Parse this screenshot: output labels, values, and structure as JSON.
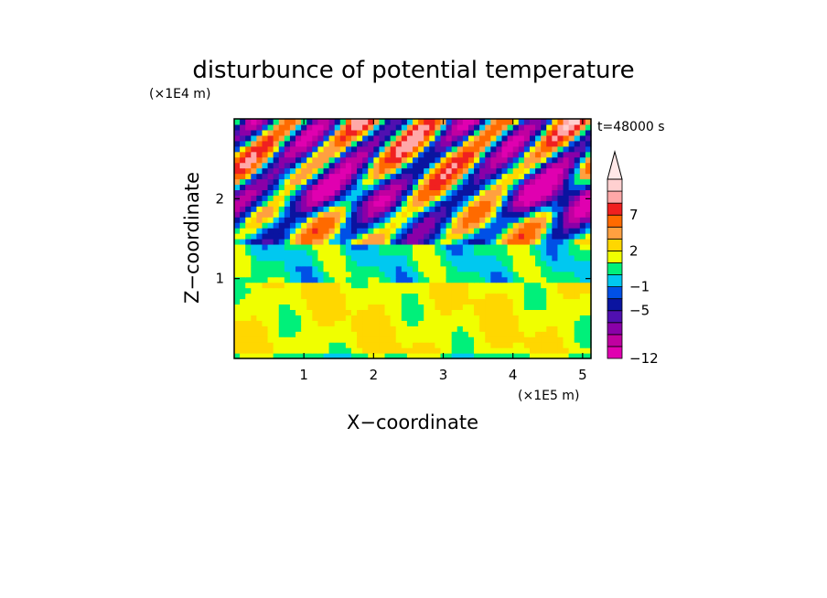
{
  "chart_data": {
    "type": "heatmap",
    "title": "disturbunce of potential temperature",
    "time_label": "t=48000 s",
    "xlabel": "X−coordinate",
    "ylabel": "Z−coordinate",
    "x_unit": "(×1E5 m)",
    "y_unit": "(×1E4 m)",
    "xlim": [
      0,
      5.12
    ],
    "ylim": [
      0,
      3.0
    ],
    "x_ticks": [
      {
        "value": 1,
        "label": "1"
      },
      {
        "value": 2,
        "label": "2"
      },
      {
        "value": 3,
        "label": "3"
      },
      {
        "value": 4,
        "label": "4"
      },
      {
        "value": 5,
        "label": "5"
      }
    ],
    "y_ticks": [
      {
        "value": 1,
        "label": "1"
      },
      {
        "value": 2,
        "label": "2"
      }
    ],
    "colorbar": {
      "orientation": "vertical",
      "extend_max": true,
      "levels": [
        {
          "value": -12,
          "color": "#e000b0"
        },
        {
          "value": -10,
          "color": "#c000a0"
        },
        {
          "value": -8,
          "color": "#8a00a8"
        },
        {
          "value": -6,
          "color": "#5010b0"
        },
        {
          "value": -5,
          "color": "#0a14a0"
        },
        {
          "value": -3,
          "color": "#0050e6"
        },
        {
          "value": -1,
          "color": "#00c8f0"
        },
        {
          "value": 0,
          "color": "#00f07a"
        },
        {
          "value": 1,
          "color": "#f0ff00"
        },
        {
          "value": 2,
          "color": "#ffd700"
        },
        {
          "value": 3,
          "color": "#ffa040"
        },
        {
          "value": 5,
          "color": "#ff6a00"
        },
        {
          "value": 7,
          "color": "#f02020"
        },
        {
          "value": 9,
          "color": "#ffa8a8"
        },
        {
          "value": 11,
          "color": "#ffd0d0"
        }
      ],
      "labels": [
        {
          "value": -12,
          "label": "−12"
        },
        {
          "value": -5,
          "label": "−5"
        },
        {
          "value": -1,
          "label": "−1"
        },
        {
          "value": 2,
          "label": "2"
        },
        {
          "value": 7,
          "label": "7"
        }
      ]
    },
    "field_description": {
      "nx": 64,
      "nz": 44,
      "z_bands": [
        {
          "z_min": 0.0,
          "z_max": 0.1,
          "base": 0.6
        },
        {
          "z_min": 0.1,
          "z_max": 0.95,
          "base": 1.8
        },
        {
          "z_min": 0.95,
          "z_max": 1.45,
          "base": 0.3
        },
        {
          "z_min": 1.45,
          "z_max": 3.0,
          "base": 0.0
        }
      ]
    }
  }
}
